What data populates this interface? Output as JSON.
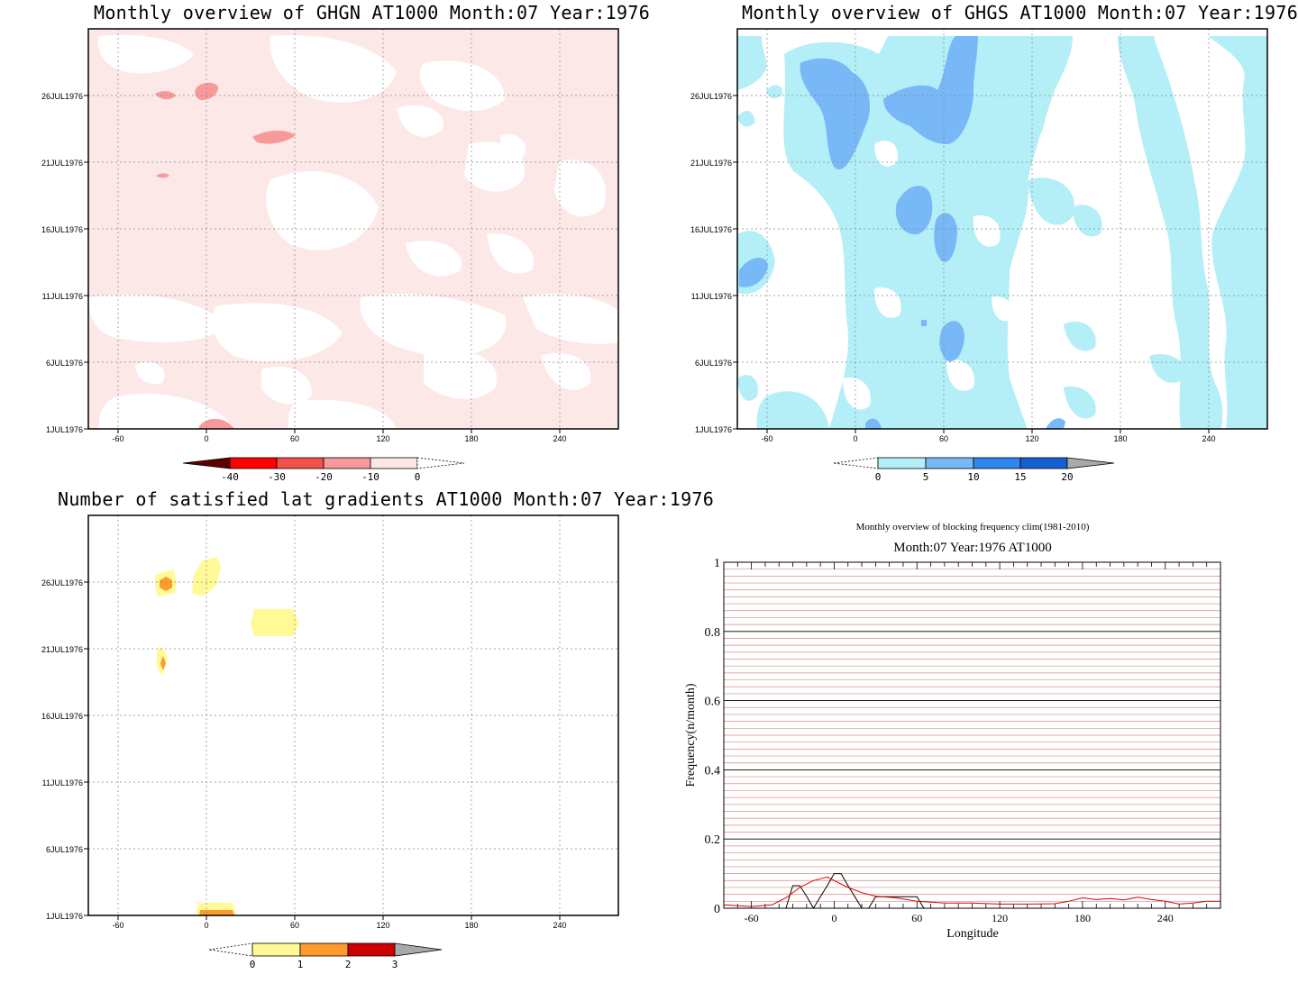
{
  "panels": {
    "ghgn": {
      "title": "Monthly overview of GHGN AT1000 Month:07 Year:1976",
      "colorbar": {
        "labels": [
          "-40",
          "-30",
          "-20",
          "-10",
          "0"
        ],
        "colors": [
          "#5c0000",
          "#ff0000",
          "#f2504a",
          "#f89a9a",
          "#fde8e8"
        ]
      }
    },
    "ghgs": {
      "title": "Monthly overview of GHGS AT1000 Month:07 Year:1976",
      "colorbar": {
        "labels": [
          "0",
          "5",
          "10",
          "15",
          "20"
        ],
        "colors": [
          "#b4eef7",
          "#78b8f6",
          "#2f86ee",
          "#1560d0",
          "#a9a9a9"
        ]
      }
    },
    "lat": {
      "title": "Number of satisfied lat gradients AT1000 Month:07 Year:1976",
      "colorbar": {
        "labels": [
          "0",
          "1",
          "2",
          "3"
        ],
        "colors": [
          "#fffa96",
          "#ff9a2e",
          "#cc0000",
          "#a9a9a9"
        ]
      }
    },
    "freq": {
      "title": "Monthly overview of blocking frequency clim(1981-2010)",
      "subtitle": "Month:07 Year:1976  AT1000"
    }
  },
  "map_axes": {
    "x_ticks": [
      "-60",
      "0",
      "60",
      "120",
      "180",
      "240"
    ],
    "y_ticks": [
      "1JUL1976",
      "6JUL1976",
      "11JUL1976",
      "16JUL1976",
      "21JUL1976",
      "26JUL1976"
    ]
  },
  "chart_data": [
    {
      "type": "heatmap",
      "title": "Monthly overview of GHGN AT1000 Month:07 Year:1976",
      "x_ticks": [
        -60,
        0,
        60,
        120,
        180,
        240
      ],
      "y_ticks": [
        "1JUL1976",
        "6JUL1976",
        "11JUL1976",
        "16JUL1976",
        "21JUL1976",
        "26JUL1976"
      ],
      "levels": [
        -40,
        -30,
        -20,
        -10,
        0
      ],
      "colors": [
        "#5c0000",
        "#ff0000",
        "#f2504a",
        "#f89a9a",
        "#fde8e8"
      ],
      "features": [
        {
          "lon": 10,
          "day": 26.2,
          "range": "-20..-10"
        },
        {
          "lon": 45,
          "day": 23.2,
          "range": "-20..-10"
        },
        {
          "lon": -30,
          "day": 26.0,
          "range": "-20..-10"
        },
        {
          "lon": -30,
          "day": 20.8,
          "range": "-20..-10"
        },
        {
          "lon": 8,
          "day": 1.2,
          "range": "-20..-10"
        }
      ]
    },
    {
      "type": "heatmap",
      "title": "Monthly overview of GHGS AT1000 Month:07 Year:1976",
      "x_ticks": [
        -60,
        0,
        60,
        120,
        180,
        240
      ],
      "y_ticks": [
        "1JUL1976",
        "6JUL1976",
        "11JUL1976",
        "16JUL1976",
        "21JUL1976",
        "26JUL1976"
      ],
      "levels": [
        0,
        5,
        10,
        15,
        20
      ],
      "colors": [
        "#b4eef7",
        "#78b8f6",
        "#2f86ee",
        "#1560d0",
        "#a9a9a9"
      ],
      "features": [
        {
          "lon": -5,
          "day": 24.8,
          "range": "5..10"
        },
        {
          "lon": 30,
          "day": 25.2,
          "range": "5..10"
        },
        {
          "lon": 60,
          "day": 28.0,
          "range": "5..10"
        },
        {
          "lon": 40,
          "day": 18.0,
          "range": "5..10"
        },
        {
          "lon": 60,
          "day": 16.0,
          "range": "5..10"
        },
        {
          "lon": -68,
          "day": 13.5,
          "range": "5..10"
        },
        {
          "lon": 68,
          "day": 7.6,
          "range": "5..10"
        }
      ]
    },
    {
      "type": "heatmap",
      "title": "Number of satisfied lat gradients AT1000 Month:07 Year:1976",
      "x_ticks": [
        -60,
        0,
        60,
        120,
        180,
        240
      ],
      "y_ticks": [
        "1JUL1976",
        "6JUL1976",
        "11JUL1976",
        "16JUL1976",
        "21JUL1976",
        "26JUL1976"
      ],
      "levels": [
        0,
        1,
        2,
        3
      ],
      "colors": [
        "#fffa96",
        "#ff9a2e",
        "#cc0000",
        "#a9a9a9"
      ],
      "features": [
        {
          "lon": -28,
          "day": 26.0,
          "value": 2
        },
        {
          "lon": 0,
          "day": 26.2,
          "value": 1
        },
        {
          "lon": 47,
          "day": 23.2,
          "value": 1
        },
        {
          "lon": -30,
          "day": 20.0,
          "value": 2
        },
        {
          "lon": 8,
          "day": 1.0,
          "value": 2
        }
      ]
    },
    {
      "type": "line",
      "title": "Monthly overview of blocking frequency clim(1981-2010)",
      "subtitle": "Month:07 Year:1976  AT1000",
      "xlabel": "Longitude",
      "ylabel": "Frequency(n/month)",
      "xlim": [
        -80,
        280
      ],
      "ylim": [
        0,
        1
      ],
      "x_ticks": [
        -60,
        0,
        60,
        120,
        180,
        240
      ],
      "y_ticks": [
        0,
        0.2,
        0.4,
        0.6,
        0.8,
        1
      ],
      "grid": true,
      "series": [
        {
          "color": "#000000",
          "x": [
            -80,
            -50,
            -35,
            -30,
            -25,
            -20,
            -15,
            -10,
            -5,
            0,
            5,
            10,
            15,
            20,
            25,
            30,
            35,
            60,
            65,
            70,
            280
          ],
          "y": [
            0,
            0,
            0,
            0.065,
            0.065,
            0.035,
            0,
            0.033,
            0.065,
            0.1,
            0.1,
            0.065,
            0.033,
            0,
            0,
            0.033,
            0.033,
            0.033,
            0,
            0,
            0
          ]
        },
        {
          "color": "#dd0000",
          "x": [
            -80,
            -60,
            -45,
            -35,
            -25,
            -15,
            -5,
            0,
            10,
            20,
            30,
            45,
            60,
            80,
            100,
            120,
            140,
            160,
            170,
            180,
            190,
            200,
            210,
            220,
            230,
            240,
            250,
            260,
            270,
            280
          ],
          "y": [
            0.01,
            0.005,
            0.01,
            0.03,
            0.06,
            0.08,
            0.09,
            0.08,
            0.06,
            0.045,
            0.035,
            0.03,
            0.02,
            0.015,
            0.015,
            0.012,
            0.012,
            0.013,
            0.02,
            0.03,
            0.025,
            0.028,
            0.024,
            0.032,
            0.025,
            0.02,
            0.012,
            0.015,
            0.02,
            0.02
          ]
        }
      ]
    }
  ]
}
